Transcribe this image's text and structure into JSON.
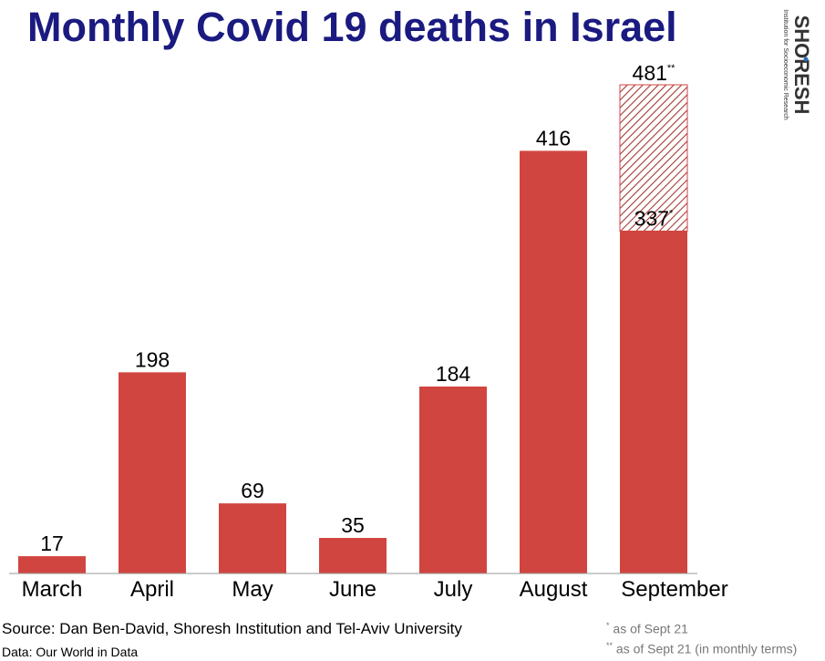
{
  "title": "Monthly Covid 19 deaths in Israel",
  "logo": {
    "name": "SHORESH",
    "tagline": "Institution for Socioeconomic Research"
  },
  "source": "Source: Dan Ben-David, Shoresh Institution and Tel-Aviv University",
  "data_source": "Data: Our World in Data",
  "notes": [
    {
      "marker": "*",
      "text": "as of Sept 21"
    },
    {
      "marker": "**",
      "text": "as of Sept 21 (in monthly terms)"
    }
  ],
  "colors": {
    "bar": "#d14540",
    "title": "#1a1a80",
    "hatch": "#a33a36"
  },
  "chart_data": {
    "type": "bar",
    "title": "Monthly Covid 19 deaths in Israel",
    "xlabel": "",
    "ylabel": "",
    "ylim": [
      0,
      510
    ],
    "grid": false,
    "categories": [
      "March",
      "April",
      "May",
      "June",
      "July",
      "August",
      "September"
    ],
    "values": [
      17,
      198,
      69,
      35,
      184,
      416,
      337
    ],
    "labels": [
      "17",
      "198",
      "69",
      "35",
      "184",
      "416",
      "337"
    ],
    "label_markers": [
      "",
      "",
      "",
      "",
      "",
      "",
      "*"
    ],
    "projection": {
      "category": "September",
      "value": 481,
      "label": "481",
      "marker": "**"
    }
  }
}
